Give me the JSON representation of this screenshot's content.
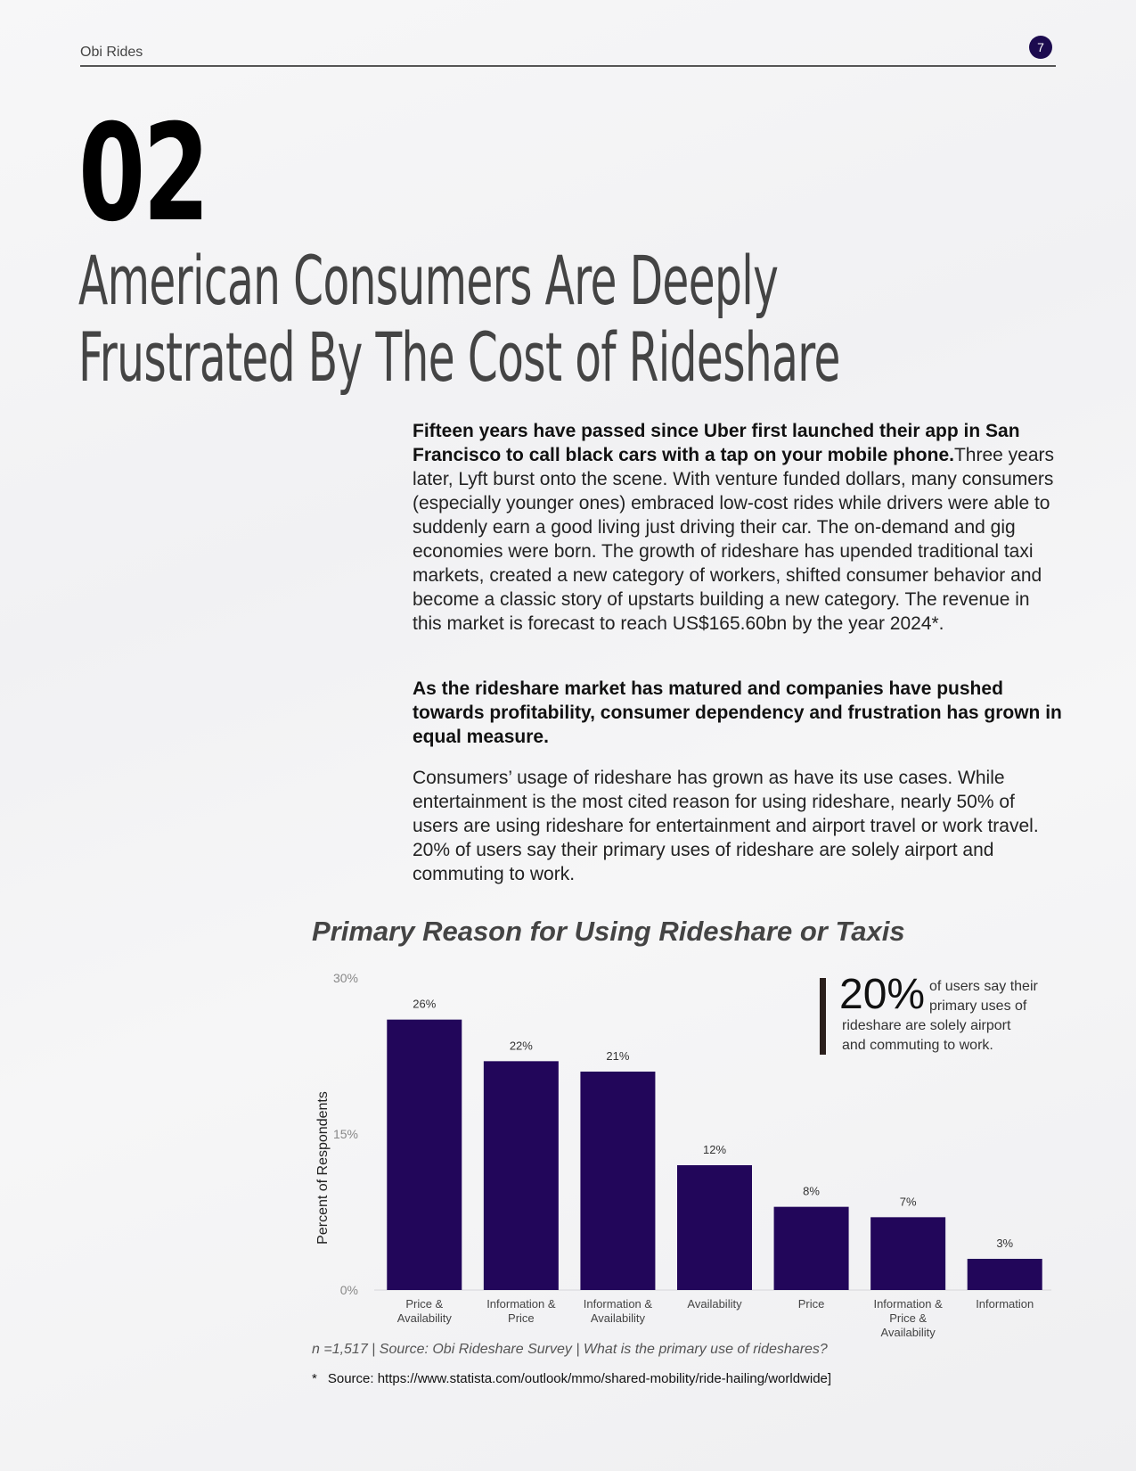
{
  "header": {
    "brand": "Obi Rides",
    "page_number": "7"
  },
  "section": {
    "number": "02",
    "title_lines": [
      "American Consumers Are Deeply",
      "Frustrated By The Cost of Rideshare"
    ]
  },
  "body": {
    "p1_bold": "Fifteen years have passed since Uber first launched their app in San Francisco to call black cars with a tap on your mobile phone.",
    "p1_rest": "Three years later, Lyft burst onto the scene. With venture funded dollars, many consumers (especially younger ones) embraced low-cost rides while drivers were able to suddenly earn a good living just driving their car. The on-demand and gig economies were born.  The growth of rideshare has upended traditional taxi markets, created a new category of workers, shifted consumer behavior and become a classic story of upstarts building a new category. The revenue in this market is forecast to reach US$165.60bn by the year 2024*.",
    "p2": "As the rideshare market has matured and companies have pushed towards profitability, consumer dependency and frustration has grown in equal measure.",
    "p3": "Consumers’ usage of rideshare has grown as have its use cases.  While entertainment is the most cited reason for using rideshare, nearly 50% of users are using rideshare for entertainment and airport travel or work travel.  20% of users say their primary uses of rideshare are solely airport and commuting to work."
  },
  "callout": {
    "big": "20%",
    "lines": [
      "of users say their",
      "primary uses of",
      "rideshare are solely airport",
      "and commuting to work."
    ]
  },
  "footnotes": {
    "sample": "n =1,517 | Source: Obi Rideshare Survey | What is the primary use of rideshares?",
    "star": "*",
    "source": "Source: https://www.statista.com/outlook/mmo/shared-mobility/ride-hailing/worldwide]"
  },
  "colors": {
    "bar": "#22065a",
    "badge": "#1c0b4f"
  },
  "chart_data": {
    "type": "bar",
    "title": "Primary Reason for Using Rideshare or Taxis",
    "ylabel": "Percent of Respondents",
    "xlabel": "",
    "ylim": [
      0,
      30
    ],
    "yticks": [
      "0%",
      "15%",
      "30%"
    ],
    "categories": [
      [
        "Price &",
        "Availability"
      ],
      [
        "Information &",
        "Price"
      ],
      [
        "Information &",
        "Availability"
      ],
      [
        "Availability"
      ],
      [
        "Price"
      ],
      [
        "Information &",
        "Price &",
        "Availability"
      ],
      [
        "Information"
      ]
    ],
    "values": [
      26,
      22,
      21,
      12,
      8,
      7,
      3
    ],
    "value_labels": [
      "26%",
      "22%",
      "21%",
      "12%",
      "8%",
      "7%",
      "3%"
    ]
  }
}
